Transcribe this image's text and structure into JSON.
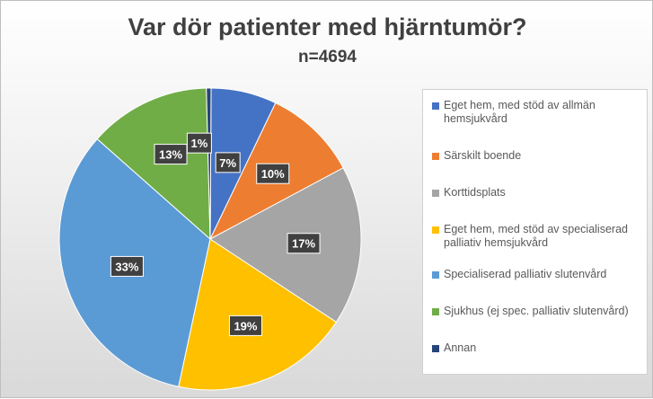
{
  "chart_data": {
    "type": "pie",
    "title": "Var dör patienter med hjärntumör?",
    "subtitle": "n=4694",
    "legend_position": "right",
    "slices": [
      {
        "name": "Eget hem, med stöd av allmän hemsjukvård",
        "value": 7,
        "label": "7%",
        "color": "#4472C4"
      },
      {
        "name": "Särskilt boende",
        "value": 10,
        "label": "10%",
        "color": "#ED7D31"
      },
      {
        "name": "Korttidsplats",
        "value": 17,
        "label": "17%",
        "color": "#A5A5A5"
      },
      {
        "name": "Eget hem, med stöd av specialiserad palliativ hemsjukvård",
        "value": 19,
        "label": "19%",
        "color": "#FFC000"
      },
      {
        "name": "Specialiserad palliativ slutenvård",
        "value": 33,
        "label": "33%",
        "color": "#5B9BD5"
      },
      {
        "name": "Sjukhus (ej spec. palliativ slutenvård)",
        "value": 13,
        "label": "13%",
        "color": "#70AD47"
      },
      {
        "name": "Annan",
        "value": 0.5,
        "label": "1%",
        "color": "#264478"
      }
    ]
  }
}
